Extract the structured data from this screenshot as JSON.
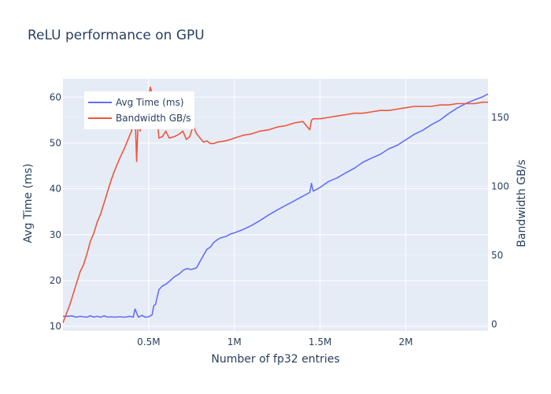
{
  "chart_data": {
    "type": "line",
    "title": "ReLU performance on GPU",
    "xlabel": "Number of fp32 entries",
    "ylabel": "Avg Time (ms)",
    "y2label": "Bandwidth GB/s",
    "xlim": [
      0,
      2480000
    ],
    "ylim": [
      9,
      64
    ],
    "y2lim": [
      -5,
      178
    ],
    "xticks": [
      500000,
      1000000,
      1500000,
      2000000
    ],
    "xtick_labels": [
      "0.5M",
      "1M",
      "1.5M",
      "2M"
    ],
    "yticks": [
      10,
      20,
      30,
      40,
      50,
      60
    ],
    "y2ticks": [
      0,
      50,
      100,
      150
    ],
    "grid": true,
    "legend_position": "top-left",
    "series": [
      {
        "name": "Avg Time (ms)",
        "axis": "y",
        "color": "#636efa",
        "x": [
          0,
          20000,
          50000,
          80000,
          100000,
          120000,
          140000,
          160000,
          180000,
          200000,
          220000,
          240000,
          260000,
          280000,
          300000,
          330000,
          360000,
          390000,
          410000,
          420000,
          440000,
          460000,
          480000,
          500000,
          520000,
          530000,
          540000,
          550000,
          560000,
          580000,
          600000,
          620000,
          650000,
          680000,
          700000,
          720000,
          750000,
          780000,
          800000,
          820000,
          840000,
          860000,
          880000,
          900000,
          920000,
          950000,
          980000,
          1000000,
          1050000,
          1100000,
          1150000,
          1200000,
          1250000,
          1300000,
          1350000,
          1400000,
          1440000,
          1450000,
          1460000,
          1500000,
          1550000,
          1600000,
          1650000,
          1700000,
          1750000,
          1800000,
          1850000,
          1900000,
          1950000,
          2000000,
          2050000,
          2100000,
          2150000,
          2200000,
          2250000,
          2300000,
          2350000,
          2400000,
          2450000,
          2480000
        ],
        "y": [
          12.2,
          12.2,
          12.3,
          12.0,
          12.2,
          12.1,
          12.0,
          12.3,
          12.0,
          12.2,
          12.0,
          12.3,
          12.0,
          12.1,
          12.0,
          12.1,
          12.0,
          12.2,
          12.0,
          13.8,
          12.0,
          12.4,
          12.0,
          12.1,
          12.5,
          14.5,
          14.8,
          16.5,
          18.0,
          18.8,
          19.2,
          19.8,
          20.8,
          21.5,
          22.2,
          22.6,
          22.4,
          22.8,
          24.2,
          25.5,
          26.8,
          27.3,
          28.3,
          28.9,
          29.3,
          29.6,
          30.2,
          30.4,
          31.1,
          32.0,
          33.1,
          34.3,
          35.4,
          36.4,
          37.4,
          38.4,
          39.2,
          41.2,
          39.5,
          40.3,
          41.6,
          42.4,
          43.5,
          44.5,
          45.8,
          46.7,
          47.5,
          48.7,
          49.5,
          50.7,
          51.9,
          52.8,
          54.0,
          55.0,
          56.4,
          57.6,
          58.6,
          59.4,
          60.1,
          60.7
        ]
      },
      {
        "name": "Bandwidth GB/s",
        "axis": "y2",
        "color": "#ef553b",
        "x": [
          0,
          40000,
          80000,
          100000,
          120000,
          140000,
          160000,
          180000,
          200000,
          220000,
          240000,
          260000,
          280000,
          300000,
          330000,
          360000,
          380000,
          400000,
          410000,
          420000,
          430000,
          440000,
          450000,
          470000,
          490000,
          510000,
          530000,
          540000,
          550000,
          560000,
          580000,
          600000,
          620000,
          650000,
          680000,
          700000,
          720000,
          740000,
          760000,
          780000,
          800000,
          820000,
          840000,
          860000,
          880000,
          900000,
          950000,
          980000,
          1000000,
          1050000,
          1100000,
          1150000,
          1200000,
          1250000,
          1300000,
          1350000,
          1400000,
          1440000,
          1450000,
          1460000,
          1500000,
          1550000,
          1600000,
          1650000,
          1700000,
          1750000,
          1800000,
          1850000,
          1900000,
          1950000,
          2000000,
          2050000,
          2100000,
          2150000,
          2200000,
          2250000,
          2300000,
          2350000,
          2400000,
          2450000,
          2480000
        ],
        "y": [
          1,
          14,
          30,
          38,
          43,
          51,
          60,
          66,
          74,
          80,
          88,
          96,
          104,
          111,
          120,
          128,
          134,
          140,
          145,
          155,
          118,
          152,
          140,
          164,
          160,
          172,
          162,
          158,
          150,
          135,
          136,
          140,
          135,
          136,
          138,
          140,
          134,
          136,
          144,
          138,
          135,
          132,
          133,
          131,
          131,
          132,
          133,
          134,
          135,
          137,
          138,
          140,
          141,
          143,
          144,
          146,
          147,
          141,
          148,
          149,
          149,
          150,
          151,
          152,
          153,
          153,
          154,
          155,
          155,
          156,
          157,
          158,
          158,
          158,
          159,
          159,
          160,
          160,
          160,
          161,
          161
        ]
      }
    ]
  }
}
